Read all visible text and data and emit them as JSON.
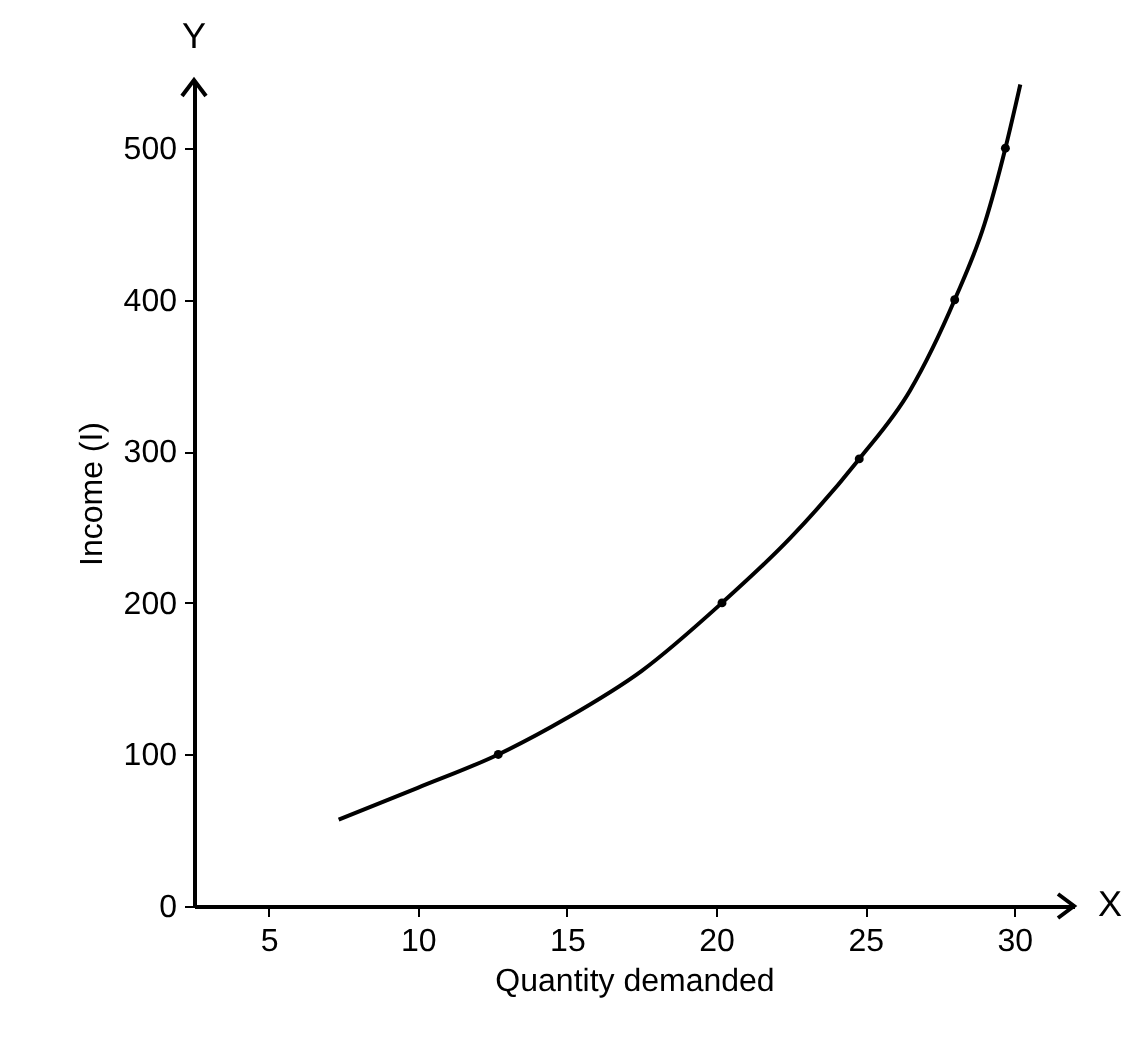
{
  "chart_data": {
    "type": "line",
    "xlabel": "Quantity demanded",
    "ylabel": "Income (I)",
    "annotations": [
      "X",
      "Y"
    ],
    "xlim": [
      2.5,
      32
    ],
    "ylim": [
      0,
      545
    ],
    "xticks": [
      5,
      10,
      15,
      20,
      25,
      30
    ],
    "yticks": [
      0,
      100,
      200,
      300,
      400,
      500
    ],
    "grid": false,
    "series": [
      {
        "color": "#000000",
        "marker": "none",
        "x": [
          7.35,
          10,
          12.7,
          15,
          17.5,
          20.2,
          22.5,
          24.8,
          26.5,
          28.0,
          29.0,
          29.7,
          30.2
        ],
        "values": [
          57,
          78,
          100,
          124,
          155,
          200,
          243,
          295,
          340,
          400,
          450,
          500,
          542
        ]
      },
      {
        "type": "scatter",
        "color": "#000000",
        "marker": "circle",
        "x": [
          12.7,
          20.2,
          24.8,
          28.0,
          29.7
        ],
        "values": [
          100,
          200,
          295,
          400,
          500
        ]
      }
    ]
  }
}
